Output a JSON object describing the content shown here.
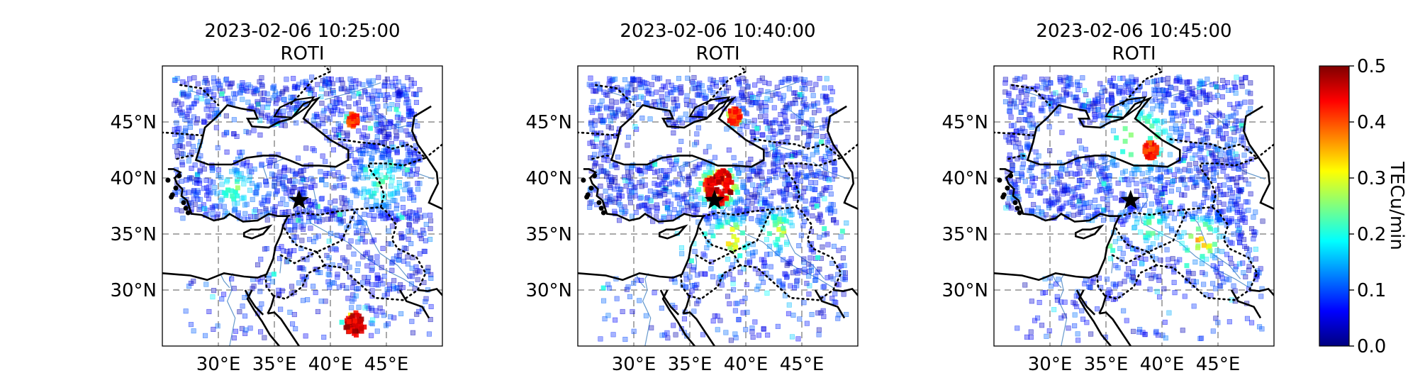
{
  "panels": [
    {
      "title": "2023-02-06 10:25:00",
      "subtitle": "ROTI",
      "hotspots": [
        {
          "lon": 42.2,
          "lat": 27.0,
          "level": 0.5,
          "spread": 0.9
        },
        {
          "lon": 31.5,
          "lat": 39.0,
          "level": 0.25,
          "spread": 1.5
        },
        {
          "lon": 44.5,
          "lat": 39.5,
          "level": 0.22,
          "spread": 2.0
        },
        {
          "lon": 42.0,
          "lat": 45.2,
          "level": 0.45,
          "spread": 0.5
        }
      ]
    },
    {
      "title": "2023-02-06 10:40:00",
      "subtitle": "ROTI",
      "hotspots": [
        {
          "lon": 37.6,
          "lat": 39.2,
          "level": 0.5,
          "spread": 1.3
        },
        {
          "lon": 38.6,
          "lat": 34.5,
          "level": 0.35,
          "spread": 1.5
        },
        {
          "lon": 35.0,
          "lat": 35.0,
          "level": 0.32,
          "spread": 1.0
        },
        {
          "lon": 43.0,
          "lat": 35.3,
          "level": 0.28,
          "spread": 1.5
        },
        {
          "lon": 42.0,
          "lat": 29.0,
          "level": 0.2,
          "spread": 1.5
        },
        {
          "lon": 39.0,
          "lat": 45.5,
          "level": 0.45,
          "spread": 0.6
        }
      ]
    },
    {
      "title": "2023-02-06 10:45:00",
      "subtitle": "ROTI",
      "hotspots": [
        {
          "lon": 34.0,
          "lat": 34.0,
          "level": 0.35,
          "spread": 1.6
        },
        {
          "lon": 43.5,
          "lat": 34.5,
          "level": 0.35,
          "spread": 1.5
        },
        {
          "lon": 38.0,
          "lat": 43.5,
          "level": 0.28,
          "spread": 2.5
        },
        {
          "lon": 39.0,
          "lat": 35.5,
          "level": 0.25,
          "spread": 1.5
        },
        {
          "lon": 30.5,
          "lat": 32.0,
          "level": 0.2,
          "spread": 1.0
        },
        {
          "lon": 39.0,
          "lat": 42.5,
          "level": 0.45,
          "spread": 0.6
        }
      ]
    }
  ],
  "map": {
    "lon_range": [
      25,
      50
    ],
    "lat_range": [
      25,
      50
    ],
    "lon_ticks": [
      30,
      35,
      40,
      45
    ],
    "lon_tick_labels": [
      "30°E",
      "35°E",
      "40°E",
      "45°E"
    ],
    "lat_ticks": [
      30,
      35,
      40,
      45
    ],
    "lat_tick_labels": [
      "30°N",
      "35°N",
      "40°N",
      "45°N"
    ],
    "grid": true,
    "epicenter": {
      "lon": 37.2,
      "lat": 38.0
    },
    "coastline_color": "#000000",
    "river_color": "#6699cc",
    "marker_shape": "square",
    "marker_alpha": 0.35
  },
  "colorbar": {
    "label": "TECu/min",
    "min": 0.0,
    "max": 0.5,
    "tick_values": [
      0.0,
      0.1,
      0.2,
      0.3,
      0.4,
      0.5
    ],
    "tick_labels": [
      "0.0",
      "0.1",
      "0.2",
      "0.3",
      "0.4",
      "0.5"
    ],
    "colormap": "jet"
  }
}
